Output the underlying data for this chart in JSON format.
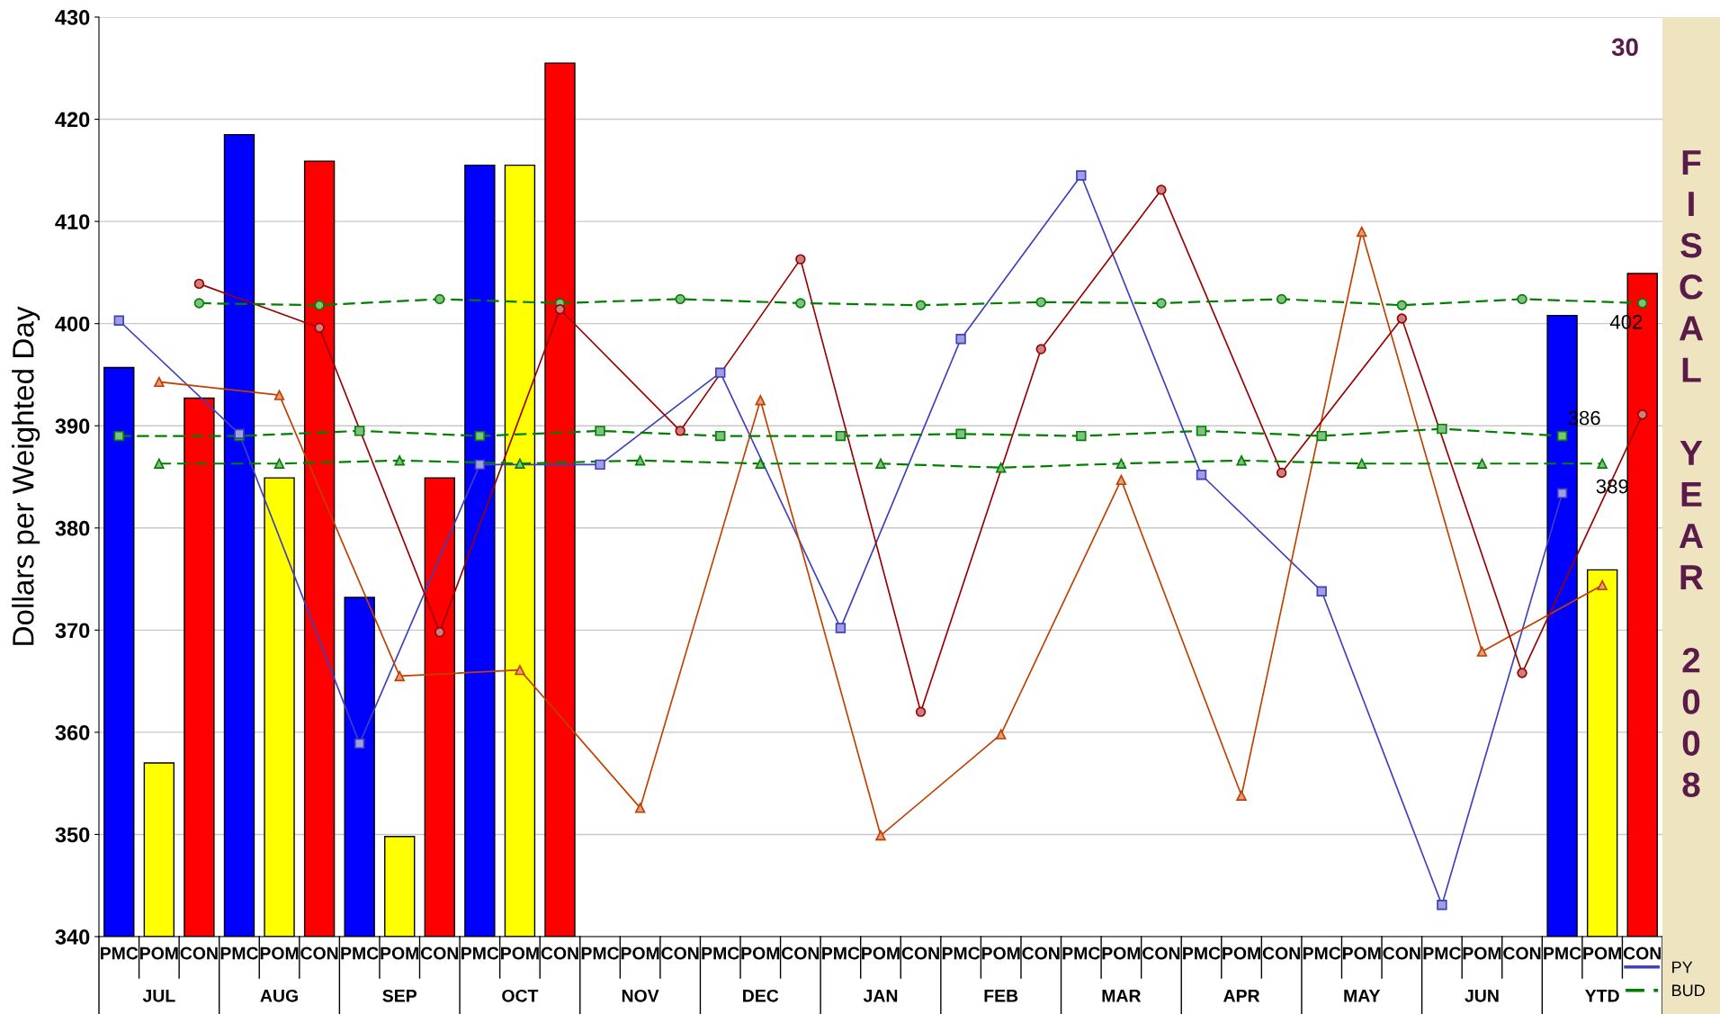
{
  "chart_data": {
    "type": "bar",
    "title": "FISCAL YEAR 2008",
    "ylabel": "Dollars per Weighted Day",
    "categories": [
      "PMC",
      "POM",
      "CON",
      "PMC",
      "POM",
      "CON",
      "PMC",
      "POM",
      "CON",
      "PMC",
      "POM",
      "CON",
      "PMC",
      "POM",
      "CON",
      "PMC",
      "POM",
      "CON",
      "PMC",
      "POM",
      "CON",
      "PMC",
      "POM",
      "CON",
      "PMC",
      "POM",
      "CON",
      "PMC",
      "POM",
      "CON",
      "PMC",
      "POM",
      "CON",
      "PMC",
      "POM",
      "CON",
      "PMC",
      "POM",
      "CON"
    ],
    "ylim": [
      340,
      430
    ],
    "yticks": [
      340,
      350,
      360,
      370,
      380,
      390,
      400,
      410,
      420,
      430
    ],
    "grid": "y",
    "legend": "bottom right",
    "series": [
      {
        "values": [
          395.7,
          357.0,
          392.7,
          418.5,
          384.9,
          415.9,
          373.2,
          349.8,
          384.9,
          415.5,
          415.5,
          425.5,
          null,
          null,
          null,
          null,
          null,
          null,
          null,
          null,
          null,
          null,
          null,
          null,
          null,
          null,
          null,
          null,
          null,
          null,
          null,
          null,
          null,
          null,
          null,
          null,
          400.8,
          375.9,
          404.9
        ],
        "colors": [
          "#0000ff",
          "#ffff00",
          "#ff0000",
          "#0000ff",
          "#ffff00",
          "#ff0000",
          "#0000ff",
          "#ffff00",
          "#ff0000",
          "#0000ff",
          "#ffff00",
          "#ff0000",
          "#0000ff",
          "#ffff00",
          "#ff0000",
          "#0000ff",
          "#ffff00",
          "#ff0000",
          "#0000ff",
          "#ffff00",
          "#ff0000",
          "#0000ff",
          "#ffff00",
          "#ff0000",
          "#0000ff",
          "#ffff00",
          "#ff0000",
          "#0000ff",
          "#ffff00",
          "#ff0000",
          "#0000ff",
          "#ffff00",
          "#ff0000",
          "#0000ff",
          "#ffff00",
          "#ff0000",
          "#0000ff",
          "#ffff00",
          "#ff0000"
        ]
      },
      {
        "name": "PY",
        "type": "line",
        "color": "#3f3fbf",
        "marker": "square",
        "line_style": "solid",
        "values": [
          400.3,
          null,
          null,
          389.2,
          null,
          null,
          358.9,
          null,
          null,
          386.2,
          null,
          null,
          386.2,
          null,
          null,
          395.2,
          null,
          null,
          370.2,
          null,
          null,
          398.5,
          null,
          null,
          414.5,
          null,
          null,
          385.2,
          null,
          null,
          373.8,
          null,
          null,
          343.1,
          null,
          null,
          383.4,
          null,
          null
        ]
      },
      {
        "type": "line",
        "color": "#c04000",
        "marker": "triangle",
        "line_style": "solid",
        "values": [
          null,
          394.3,
          null,
          null,
          393.0,
          null,
          null,
          365.5,
          null,
          null,
          366.1,
          null,
          null,
          352.6,
          null,
          null,
          392.5,
          null,
          null,
          349.9,
          null,
          null,
          359.8,
          null,
          null,
          384.7,
          null,
          null,
          353.8,
          null,
          null,
          409.0,
          null,
          null,
          367.9,
          null,
          null,
          374.4,
          null
        ]
      },
      {
        "type": "line",
        "color": "#990000",
        "marker": "circle",
        "line_style": "solid",
        "values": [
          null,
          null,
          403.9,
          null,
          null,
          399.6,
          null,
          null,
          369.8,
          null,
          null,
          401.4,
          null,
          null,
          389.5,
          null,
          null,
          406.3,
          null,
          null,
          362.0,
          null,
          null,
          397.5,
          null,
          null,
          413.1,
          null,
          null,
          385.4,
          null,
          null,
          400.5,
          null,
          null,
          365.8,
          null,
          null,
          391.1
        ]
      },
      {
        "name": "BUD",
        "type": "line",
        "color": "#008000",
        "marker": "square",
        "line_style": "dashed",
        "values": [
          389.0,
          null,
          null,
          389.0,
          null,
          null,
          389.5,
          null,
          null,
          389.0,
          null,
          null,
          389.5,
          null,
          null,
          389.0,
          null,
          null,
          389.0,
          null,
          null,
          389.2,
          null,
          null,
          389.0,
          null,
          null,
          389.5,
          null,
          null,
          389.0,
          null,
          null,
          389.7,
          null,
          null,
          389.0,
          null,
          null
        ]
      },
      {
        "type": "line",
        "color": "#008000",
        "marker": "triangle",
        "line_style": "dashed",
        "values": [
          null,
          386.3,
          null,
          null,
          386.3,
          null,
          null,
          386.6,
          null,
          null,
          386.3,
          null,
          null,
          386.6,
          null,
          null,
          386.3,
          null,
          null,
          386.3,
          null,
          null,
          385.9,
          null,
          null,
          386.3,
          null,
          null,
          386.6,
          null,
          null,
          386.3,
          null,
          null,
          386.3,
          null,
          null,
          386.3,
          null
        ]
      },
      {
        "type": "line",
        "color": "#008000",
        "marker": "circle",
        "line_style": "dashed",
        "values": [
          null,
          null,
          402.0,
          null,
          null,
          401.8,
          null,
          null,
          402.4,
          null,
          null,
          402.0,
          null,
          null,
          402.4,
          null,
          null,
          402.0,
          null,
          null,
          401.8,
          null,
          null,
          402.1,
          null,
          null,
          402.0,
          null,
          null,
          402.4,
          null,
          null,
          401.8,
          null,
          null,
          402.4,
          null,
          null,
          402.0
        ]
      }
    ],
    "annotations": [
      "30",
      "402",
      "386",
      "389",
      "JUL",
      "AUG",
      "SEP",
      "OCT",
      "NOV",
      "DEC",
      "JAN",
      "FEB",
      "MAR",
      "APR",
      "MAY",
      "JUN",
      "YTD"
    ]
  }
}
